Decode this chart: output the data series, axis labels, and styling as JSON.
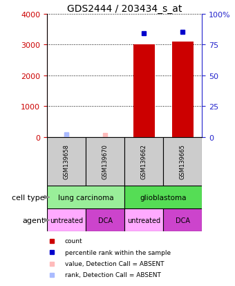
{
  "title": "GDS2444 / 203434_s_at",
  "samples": [
    "GSM139658",
    "GSM139670",
    "GSM139662",
    "GSM139665"
  ],
  "count_values": [
    null,
    null,
    3000,
    3100
  ],
  "percentile_values": [
    null,
    null,
    84,
    85
  ],
  "absent_value_values": [
    50,
    50,
    null,
    null
  ],
  "absent_rank_values": [
    2,
    300,
    null,
    null
  ],
  "cell_types": [
    {
      "label": "lung carcinoma",
      "span": [
        0,
        2
      ],
      "color": "#99ee99"
    },
    {
      "label": "glioblastoma",
      "span": [
        2,
        4
      ],
      "color": "#55dd55"
    }
  ],
  "agents": [
    {
      "label": "untreated",
      "span": [
        0,
        1
      ],
      "color": "#ffaaff"
    },
    {
      "label": "DCA",
      "span": [
        1,
        2
      ],
      "color": "#cc44cc"
    },
    {
      "label": "untreated",
      "span": [
        2,
        3
      ],
      "color": "#ffaaff"
    },
    {
      "label": "DCA",
      "span": [
        3,
        4
      ],
      "color": "#cc44cc"
    }
  ],
  "ylim_left": [
    0,
    4000
  ],
  "ylim_right": [
    0,
    100
  ],
  "yticks_left": [
    0,
    1000,
    2000,
    3000,
    4000
  ],
  "yticks_right": [
    0,
    25,
    50,
    75,
    100
  ],
  "ytick_labels_right": [
    "0",
    "25",
    "50",
    "75",
    "100%"
  ],
  "bar_color": "#cc0000",
  "percentile_color": "#0000cc",
  "absent_value_color": "#ffbbbb",
  "absent_rank_color": "#aabbff",
  "label_color_left": "#cc0000",
  "label_color_right": "#2222cc",
  "sample_box_color": "#cccccc"
}
